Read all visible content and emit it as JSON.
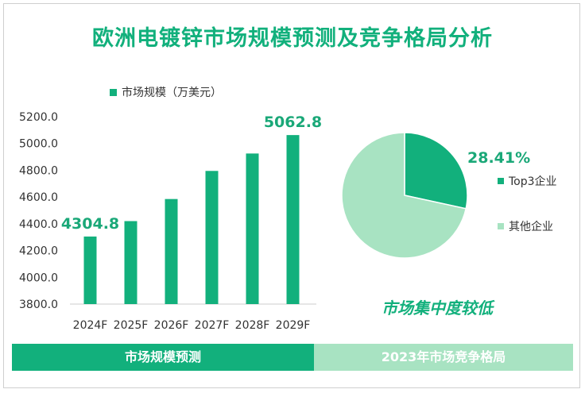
{
  "title": "欧洲电镀锌市场规模预测及竞争格局分析",
  "colors": {
    "accent": "#12b07c",
    "light": "#a8e3c2",
    "label_green": "#1aa878"
  },
  "chart_data": [
    {
      "type": "bar",
      "legend": "市场规模（万美元）",
      "categories": [
        "2024F",
        "2025F",
        "2026F",
        "2027F",
        "2028F",
        "2029F"
      ],
      "values": [
        4304.8,
        4420,
        4585,
        4795,
        4925,
        5062.8
      ],
      "data_labels": [
        {
          "index": 0,
          "text": "4304.8"
        },
        {
          "index": 5,
          "text": "5062.8"
        }
      ],
      "yticks": [
        "5200.0",
        "5000.0",
        "4800.0",
        "4600.0",
        "4400.0",
        "4200.0",
        "4000.0",
        "3800.0"
      ],
      "ylim": [
        3800,
        5200
      ],
      "color": "#12b07c"
    },
    {
      "type": "pie",
      "slices": [
        {
          "name": "Top3企业",
          "value": 28.41,
          "color": "#12b07c",
          "label": "28.41%"
        },
        {
          "name": "其他企业",
          "value": 71.59,
          "color": "#a8e3c2"
        }
      ]
    }
  ],
  "pie_caption": "市场集中度较低",
  "footer": {
    "left": "市场规模预测",
    "right": "2023年市场竞争格局"
  }
}
